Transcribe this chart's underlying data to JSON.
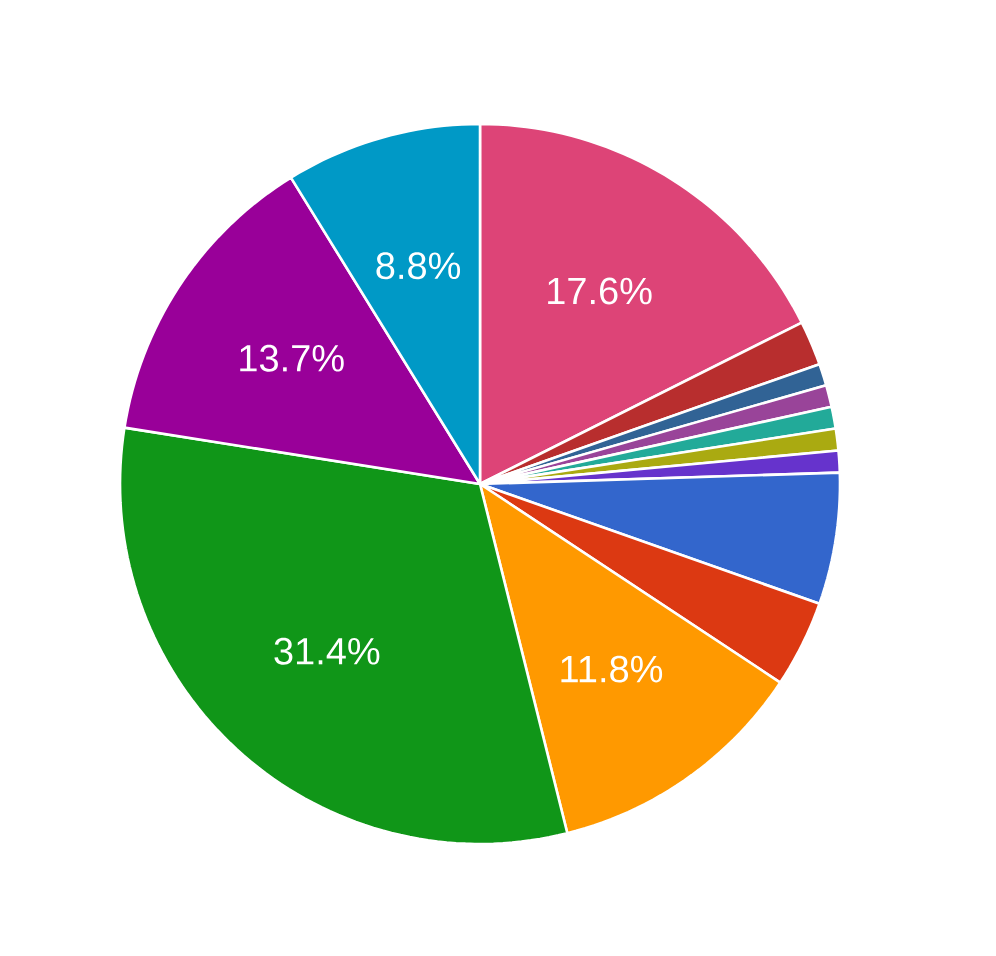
{
  "chart_data": {
    "type": "pie",
    "categories": [
      null,
      null,
      null,
      null,
      null,
      null,
      null,
      null,
      null,
      null,
      null,
      null,
      null
    ],
    "values": [
      17.6,
      2.0,
      0.98,
      0.98,
      0.98,
      0.98,
      0.98,
      5.9,
      3.9,
      11.8,
      31.4,
      13.7,
      8.8
    ],
    "colors": [
      "#dd4477",
      "#b82e2e",
      "#316395",
      "#994499",
      "#22aa99",
      "#aaaa11",
      "#6633cc",
      "#3366cc",
      "#dc3912",
      "#ff9900",
      "#109618",
      "#990099",
      "#0099c6"
    ],
    "value_labels": [
      "17.6%",
      null,
      null,
      null,
      null,
      null,
      null,
      null,
      null,
      "11.8%",
      "31.4%",
      "13.7%",
      "8.8%"
    ]
  }
}
